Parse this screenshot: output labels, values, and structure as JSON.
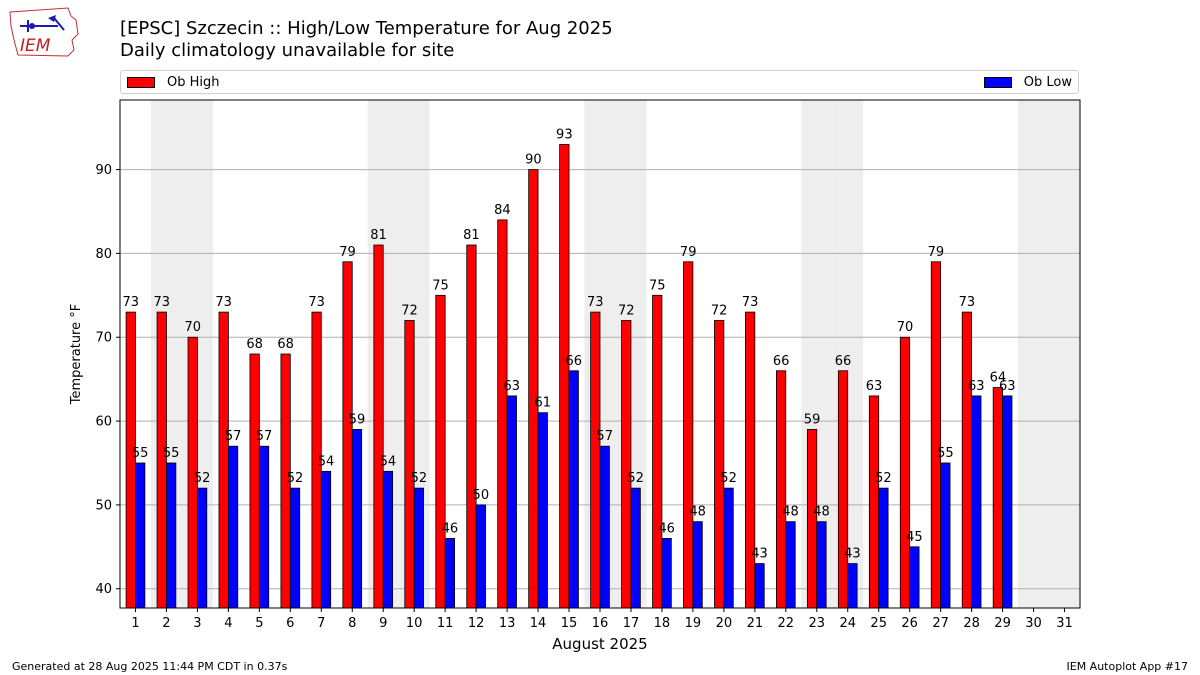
{
  "header": {
    "title": "[EPSC] Szczecin :: High/Low Temperature for Aug 2025",
    "subtitle": "Daily climatology unavailable for site"
  },
  "logo": {
    "text": "IEM",
    "icon": "iowa-state-weather-logo-icon"
  },
  "legend": {
    "high_label": "Ob High",
    "low_label": "Ob Low",
    "placement": "top (outside plot, spanning width)"
  },
  "colors": {
    "high": "#ff0000",
    "low": "#0000ff",
    "weekend_band": "#eeeeee",
    "grid": "#b0b0b0"
  },
  "chart_data": {
    "type": "bar",
    "xlabel": "August 2025",
    "ylabel": "Temperature °F",
    "categories": [
      "1",
      "2",
      "3",
      "4",
      "5",
      "6",
      "7",
      "8",
      "9",
      "10",
      "11",
      "12",
      "13",
      "14",
      "15",
      "16",
      "17",
      "18",
      "19",
      "20",
      "21",
      "22",
      "23",
      "24",
      "25",
      "26",
      "27",
      "28",
      "29",
      "30",
      "31"
    ],
    "series": [
      {
        "name": "Ob High",
        "values": [
          73,
          73,
          70,
          73,
          68,
          68,
          73,
          79,
          81,
          72,
          75,
          81,
          84,
          90,
          93,
          73,
          72,
          75,
          79,
          72,
          73,
          66,
          59,
          66,
          63,
          70,
          79,
          73,
          64,
          null,
          null
        ]
      },
      {
        "name": "Ob Low",
        "values": [
          55,
          55,
          52,
          57,
          57,
          52,
          54,
          59,
          54,
          52,
          46,
          50,
          63,
          61,
          66,
          57,
          52,
          46,
          48,
          52,
          43,
          48,
          48,
          43,
          52,
          45,
          55,
          63,
          63,
          null,
          null
        ]
      }
    ],
    "ylim": [
      37.7,
      98.3
    ],
    "yticks": [
      40,
      50,
      60,
      70,
      80,
      90
    ],
    "weekend_days": [
      2,
      3,
      9,
      10,
      16,
      17,
      23,
      24,
      30,
      31
    ],
    "grid": "horizontal"
  },
  "footer": {
    "generated": "Generated at 28 Aug 2025 11:44 PM CDT in 0.37s",
    "app": "IEM Autoplot App #17"
  }
}
